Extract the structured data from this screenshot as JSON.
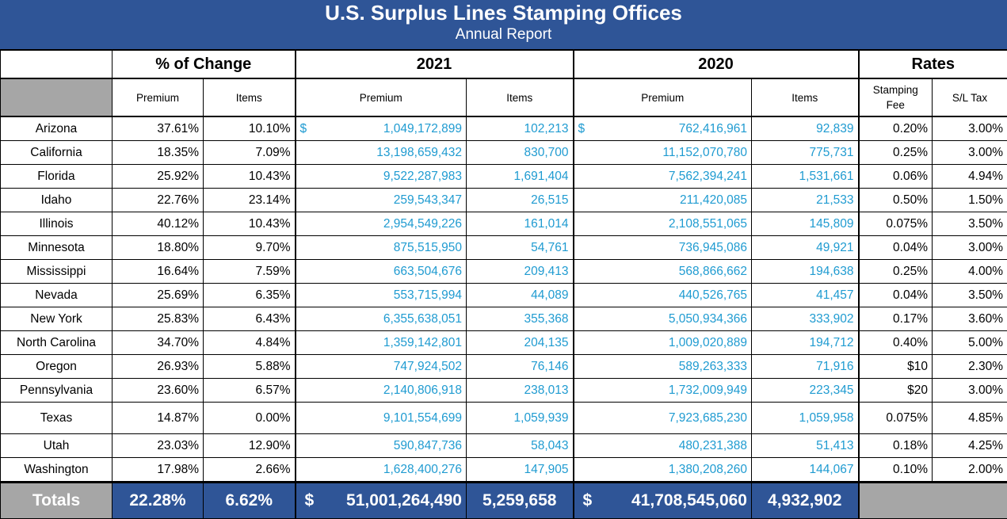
{
  "header": {
    "title": "U.S. Surplus Lines Stamping Offices",
    "subtitle": "Annual Report"
  },
  "groups": {
    "change": "% of Change",
    "y2021": "2021",
    "y2020": "2020",
    "rates": "Rates"
  },
  "subheaders": {
    "change_premium": "Premium",
    "change_items": "Items",
    "y2021_premium": "Premium",
    "y2021_items": "Items",
    "y2020_premium": "Premium",
    "y2020_items": "Items",
    "stamping_fee": "Stamping Fee",
    "sl_tax": "S/L Tax"
  },
  "currency_symbol": "$",
  "rows": [
    {
      "state": "Arizona",
      "chg_premium": "37.61%",
      "chg_items": "10.10%",
      "p2021": "1,049,172,899",
      "i2021": "102,213",
      "p2020": "762,416,961",
      "i2020": "92,839",
      "fee": "0.20%",
      "tax": "3.00%"
    },
    {
      "state": "California",
      "chg_premium": "18.35%",
      "chg_items": "7.09%",
      "p2021": "13,198,659,432",
      "i2021": "830,700",
      "p2020": "11,152,070,780",
      "i2020": "775,731",
      "fee": "0.25%",
      "tax": "3.00%"
    },
    {
      "state": "Florida",
      "chg_premium": "25.92%",
      "chg_items": "10.43%",
      "p2021": "9,522,287,983",
      "i2021": "1,691,404",
      "p2020": "7,562,394,241",
      "i2020": "1,531,661",
      "fee": "0.06%",
      "tax": "4.94%"
    },
    {
      "state": "Idaho",
      "chg_premium": "22.76%",
      "chg_items": "23.14%",
      "p2021": "259,543,347",
      "i2021": "26,515",
      "p2020": "211,420,085",
      "i2020": "21,533",
      "fee": "0.50%",
      "tax": "1.50%"
    },
    {
      "state": "Illinois",
      "chg_premium": "40.12%",
      "chg_items": "10.43%",
      "p2021": "2,954,549,226",
      "i2021": "161,014",
      "p2020": "2,108,551,065",
      "i2020": "145,809",
      "fee": "0.075%",
      "tax": "3.50%"
    },
    {
      "state": "Minnesota",
      "chg_premium": "18.80%",
      "chg_items": "9.70%",
      "p2021": "875,515,950",
      "i2021": "54,761",
      "p2020": "736,945,086",
      "i2020": "49,921",
      "fee": "0.04%",
      "tax": "3.00%"
    },
    {
      "state": "Mississippi",
      "chg_premium": "16.64%",
      "chg_items": "7.59%",
      "p2021": "663,504,676",
      "i2021": "209,413",
      "p2020": "568,866,662",
      "i2020": "194,638",
      "fee": "0.25%",
      "tax": "4.00%"
    },
    {
      "state": "Nevada",
      "chg_premium": "25.69%",
      "chg_items": "6.35%",
      "p2021": "553,715,994",
      "i2021": "44,089",
      "p2020": "440,526,765",
      "i2020": "41,457",
      "fee": "0.04%",
      "tax": "3.50%"
    },
    {
      "state": "New York",
      "chg_premium": "25.83%",
      "chg_items": "6.43%",
      "p2021": "6,355,638,051",
      "i2021": "355,368",
      "p2020": "5,050,934,366",
      "i2020": "333,902",
      "fee": "0.17%",
      "tax": "3.60%"
    },
    {
      "state": "North Carolina",
      "chg_premium": "34.70%",
      "chg_items": "4.84%",
      "p2021": "1,359,142,801",
      "i2021": "204,135",
      "p2020": "1,009,020,889",
      "i2020": "194,712",
      "fee": "0.40%",
      "tax": "5.00%"
    },
    {
      "state": "Oregon",
      "chg_premium": "26.93%",
      "chg_items": "5.88%",
      "p2021": "747,924,502",
      "i2021": "76,146",
      "p2020": "589,263,333",
      "i2020": "71,916",
      "fee": "$10",
      "tax": "2.30%"
    },
    {
      "state": "Pennsylvania",
      "chg_premium": "23.60%",
      "chg_items": "6.57%",
      "p2021": "2,140,806,918",
      "i2021": "238,013",
      "p2020": "1,732,009,949",
      "i2020": "223,345",
      "fee": "$20",
      "tax": "3.00%"
    },
    {
      "state": "Texas",
      "chg_premium": "14.87%",
      "chg_items": "0.00%",
      "p2021": "9,101,554,699",
      "i2021": "1,059,939",
      "p2020": "7,923,685,230",
      "i2020": "1,059,958",
      "fee": "0.075%",
      "tax": "4.85%"
    },
    {
      "state": "Utah",
      "chg_premium": "23.03%",
      "chg_items": "12.90%",
      "p2021": "590,847,736",
      "i2021": "58,043",
      "p2020": "480,231,388",
      "i2020": "51,413",
      "fee": "0.18%",
      "tax": "4.25%"
    },
    {
      "state": "Washington",
      "chg_premium": "17.98%",
      "chg_items": "2.66%",
      "p2021": "1,628,400,276",
      "i2021": "147,905",
      "p2020": "1,380,208,260",
      "i2020": "144,067",
      "fee": "0.10%",
      "tax": "2.00%"
    }
  ],
  "totals": {
    "label": "Totals",
    "chg_premium": "22.28%",
    "chg_items": "6.62%",
    "p2021": "51,001,264,490",
    "i2021": "5,259,658",
    "p2020": "41,708,545,060",
    "i2020": "4,932,902"
  }
}
